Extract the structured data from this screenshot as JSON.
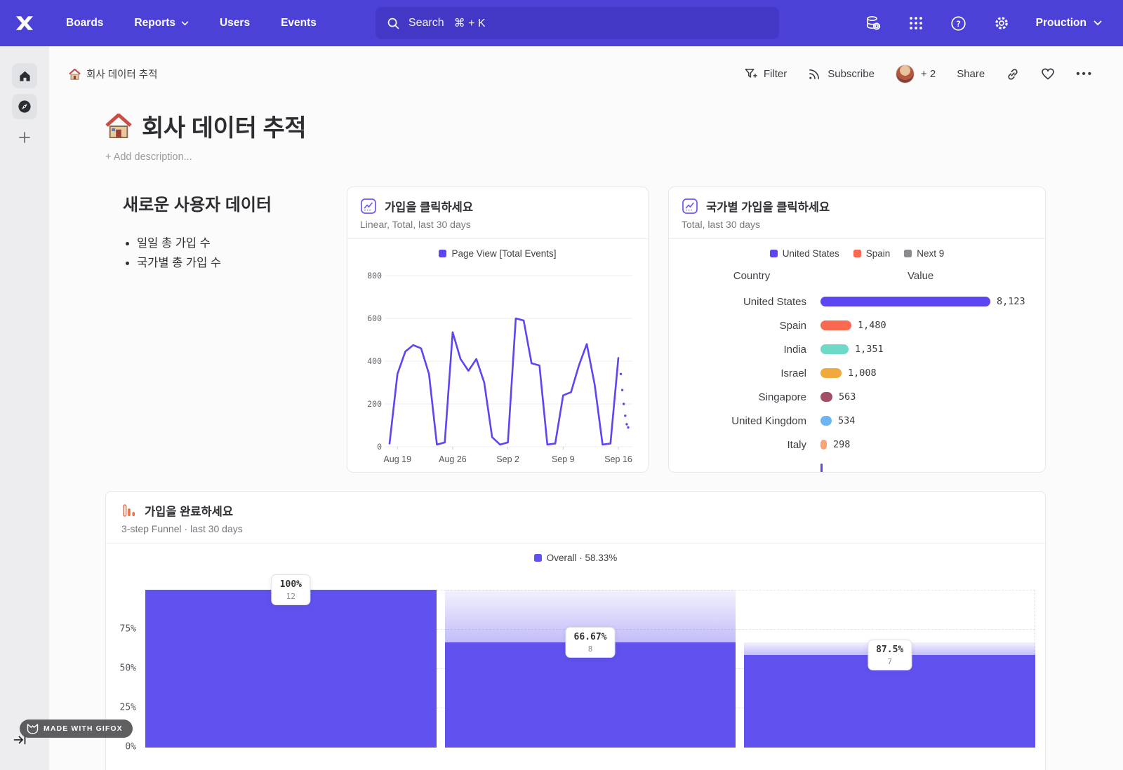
{
  "nav": {
    "items": [
      {
        "label": "Boards",
        "chevron": false
      },
      {
        "label": "Reports",
        "chevron": true
      },
      {
        "label": "Users",
        "chevron": false
      },
      {
        "label": "Events",
        "chevron": false
      }
    ],
    "search": {
      "label": "Search",
      "shortcut": "⌘ + K"
    },
    "project": {
      "label": "Prouction"
    },
    "right_icons": [
      "database-settings",
      "apps-grid",
      "help",
      "settings"
    ]
  },
  "sidebar": {
    "items": [
      "home",
      "discover",
      "create"
    ]
  },
  "board_header": {
    "breadcrumb": {
      "icon": "🏠",
      "label": "회사 데이터 추적"
    },
    "actions": {
      "filter": "Filter",
      "subscribe": "Subscribe",
      "collaborators": "+ 2",
      "share": "Share",
      "icons": [
        "filter",
        "rss",
        "avatar",
        "link",
        "heart",
        "more"
      ]
    }
  },
  "page": {
    "icon": "🏠",
    "title": "회사 데이터 추적",
    "description_placeholder": "+ Add description..."
  },
  "intro": {
    "heading": "새로운 사용자 데이터",
    "bullets": [
      "일일 총 가입 수",
      "국가별 총 가입 수"
    ]
  },
  "chart_data": [
    {
      "type": "line",
      "title": "가입을 클릭하세요",
      "subtitle": "Linear, Total, last 30 days",
      "legend": [
        {
          "label": "Page View [Total Events]",
          "color": "#5b46f2"
        }
      ],
      "ylim": [
        0,
        800
      ],
      "y_ticks": [
        0,
        200,
        400,
        600,
        800
      ],
      "x_tick_labels": [
        "Aug 19",
        "Aug 26",
        "Sep 2",
        "Sep 9",
        "Sep 16"
      ],
      "x_tick_indices": [
        1,
        8,
        15,
        22,
        29
      ],
      "series": [
        {
          "name": "Page View [Total Events]",
          "color": "#5b46f2",
          "values": [
            15,
            340,
            445,
            475,
            460,
            340,
            10,
            20,
            535,
            410,
            355,
            410,
            300,
            45,
            10,
            20,
            600,
            590,
            390,
            380,
            10,
            15,
            240,
            255,
            380,
            480,
            290,
            10,
            15,
            415
          ]
        }
      ],
      "incomplete_tail_values": [
        340,
        265,
        200,
        145,
        105,
        90
      ],
      "grid": true,
      "legend_position": "top"
    },
    {
      "type": "bar",
      "title": "국가별 가입을 클릭하세요",
      "subtitle": "Total, last 30 days",
      "legend": [
        {
          "label": "United States",
          "color": "#5b46f2"
        },
        {
          "label": "Spain",
          "color": "#f96a50"
        },
        {
          "label": "Next 9",
          "color": "#8a8a8f"
        }
      ],
      "columns": [
        "Country",
        "Value"
      ],
      "rows": [
        {
          "label": "United States",
          "value": 8123,
          "display": "8,123",
          "color": "#5b46f2"
        },
        {
          "label": "Spain",
          "value": 1480,
          "display": "1,480",
          "color": "#f96a50"
        },
        {
          "label": "India",
          "value": 1351,
          "display": "1,351",
          "color": "#6fd8c6"
        },
        {
          "label": "Israel",
          "value": 1008,
          "display": "1,008",
          "color": "#f0a93c"
        },
        {
          "label": "Singapore",
          "value": 563,
          "display": "563",
          "color": "#a34f66"
        },
        {
          "label": "United Kingdom",
          "value": 534,
          "display": "534",
          "color": "#6cb5f0"
        },
        {
          "label": "Italy",
          "value": 298,
          "display": "298",
          "color": "#f9a474"
        },
        {
          "label": "",
          "value": 100,
          "display": "",
          "color": "#5b46f2",
          "partial": true
        }
      ],
      "max_value": 8123
    },
    {
      "type": "funnel",
      "title": "가입을 완료하세요",
      "subtitle": "3-step Funnel · last 30 days",
      "legend": [
        {
          "label": "Overall · 58.33%",
          "color": "#6152f0"
        }
      ],
      "y_ticks": [
        "0%",
        "25%",
        "50%",
        "75%"
      ],
      "bar_color": "#6152f0",
      "steps": [
        {
          "conversion": "100%",
          "count": "12",
          "overall_pct": 100,
          "prev_overall_pct": 100
        },
        {
          "conversion": "66.67%",
          "count": "8",
          "overall_pct": 66.67,
          "prev_overall_pct": 100
        },
        {
          "conversion": "87.5%",
          "count": "7",
          "overall_pct": 58.33,
          "prev_overall_pct": 66.67
        }
      ]
    }
  ],
  "footer_badge": {
    "label": "MADE WITH GIFOX"
  },
  "colors": {
    "nav_bg": "#4b41d7",
    "search_bg": "#4338c5",
    "accent_purple": "#5b46f2",
    "funnel_purple": "#6152f0",
    "sidebar_bg": "#ededef",
    "card_border": "#e7e7ea"
  }
}
